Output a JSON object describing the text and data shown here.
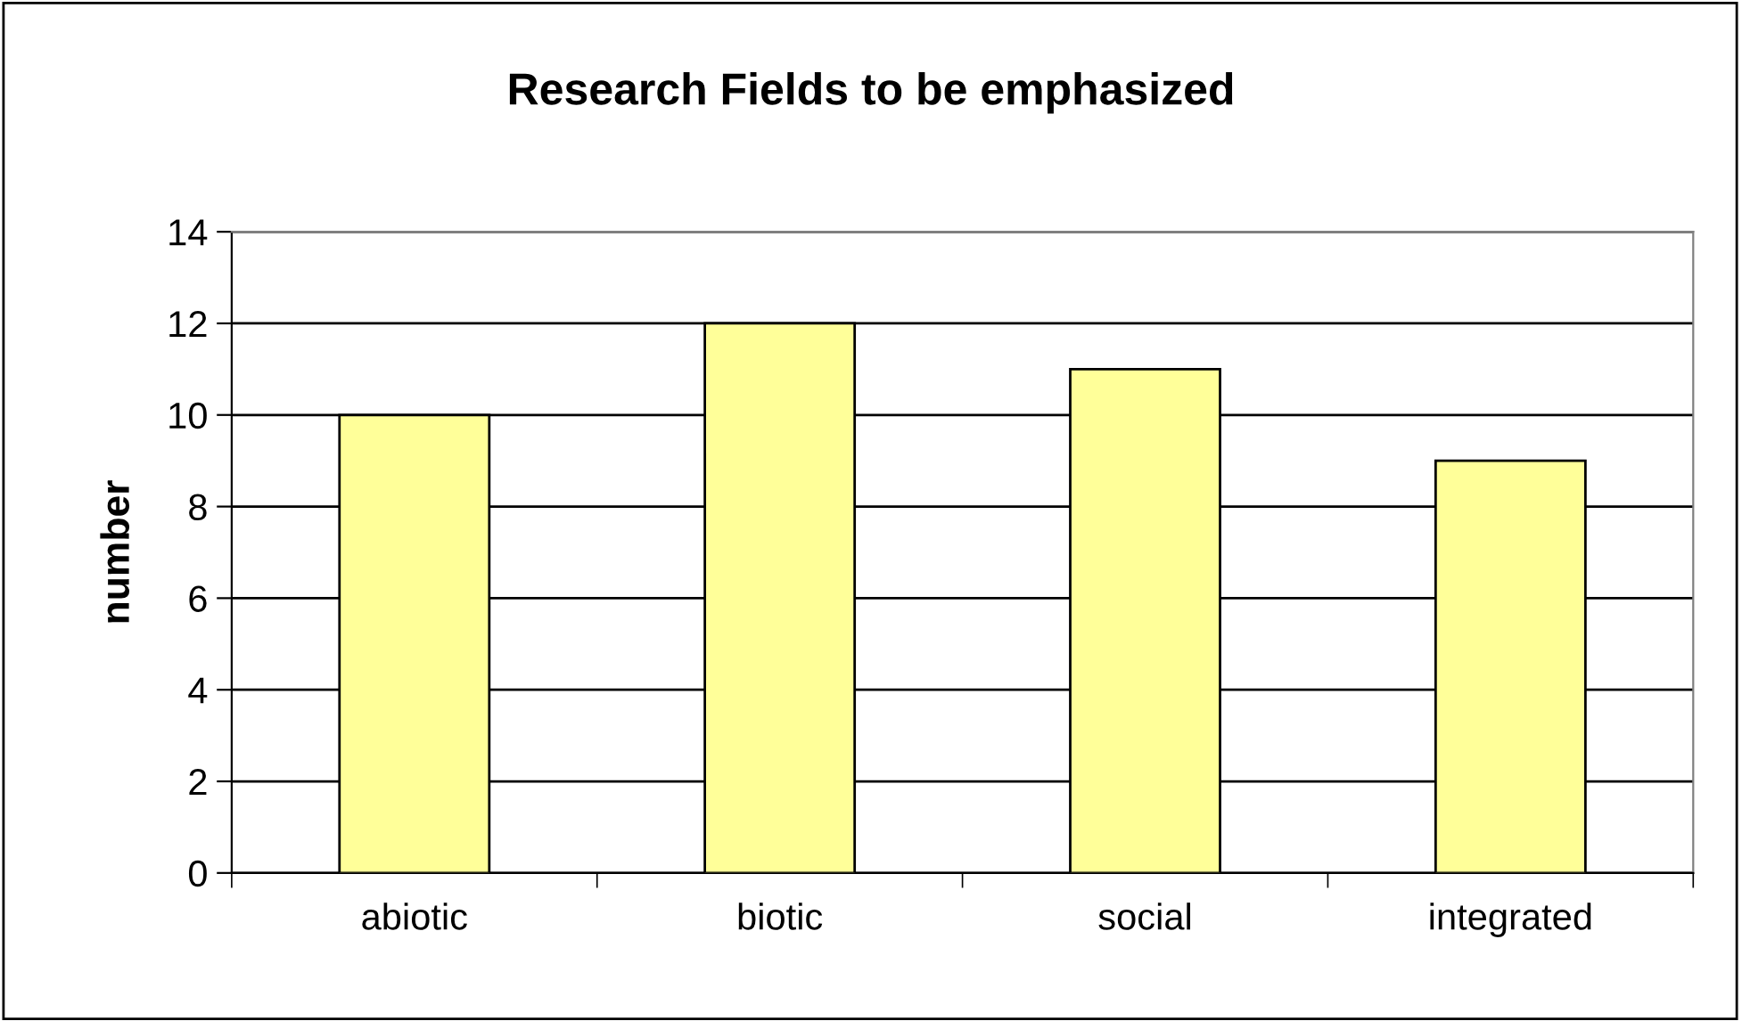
{
  "chart_data": {
    "type": "bar",
    "title": "Research Fields to be emphasized",
    "ylabel": "number",
    "categories": [
      "abiotic",
      "biotic",
      "social",
      "integrated"
    ],
    "values": [
      10,
      12,
      11,
      9
    ],
    "color": "#ffff99",
    "ylim": [
      0,
      14
    ],
    "yticks": [
      0,
      2,
      4,
      6,
      8,
      10,
      12,
      14
    ],
    "grid": "y",
    "legend": false
  }
}
